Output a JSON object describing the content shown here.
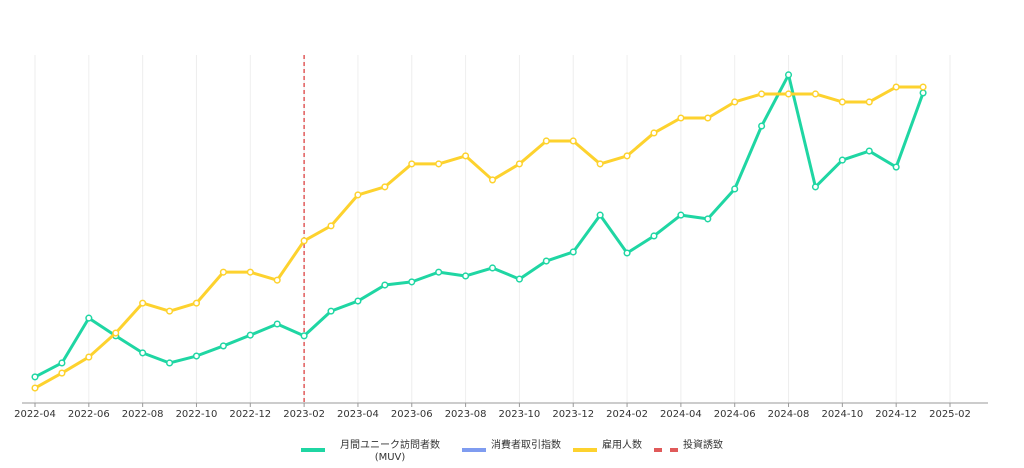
{
  "chart_data": {
    "type": "line",
    "x": [
      "2022-04",
      "2022-05",
      "2022-06",
      "2022-07",
      "2022-08",
      "2022-09",
      "2022-10",
      "2022-11",
      "2022-12",
      "2023-01",
      "2023-02",
      "2023-03",
      "2023-04",
      "2023-05",
      "2023-06",
      "2023-07",
      "2023-08",
      "2023-09",
      "2023-10",
      "2023-11",
      "2023-12",
      "2024-01",
      "2024-02",
      "2024-03",
      "2024-04",
      "2024-05",
      "2024-06",
      "2024-07",
      "2024-08",
      "2024-09",
      "2024-10",
      "2024-11",
      "2024-12",
      "2025-01"
    ],
    "series": [
      {
        "name": "月間ユニーク訪問者数 (MUV)",
        "color": "#1fd6a3",
        "values": [
          7.5,
          11.5,
          24.4,
          19.3,
          14.4,
          11.5,
          13.5,
          16.4,
          19.5,
          22.7,
          19.3,
          26.4,
          29.3,
          33.9,
          34.8,
          37.6,
          36.5,
          38.8,
          35.6,
          40.8,
          43.4,
          54.0,
          43.1,
          48.0,
          54.0,
          52.9,
          61.5,
          79.6,
          94.3,
          62.1,
          69.8,
          72.4,
          67.8,
          89.1
        ]
      },
      {
        "name": "消費者取引指数",
        "color": "#7f9cf0",
        "values": [
          null,
          null,
          null,
          null,
          null,
          null,
          null,
          null,
          null,
          null,
          null,
          null,
          null,
          null,
          null,
          null,
          null,
          null,
          null,
          null,
          null,
          null,
          null,
          null,
          null,
          null,
          null,
          null,
          null,
          null,
          null,
          null,
          null,
          null
        ]
      },
      {
        "name": "雇用人数",
        "color": "#fdd22e",
        "values": [
          4.3,
          8.6,
          13.2,
          20.1,
          28.7,
          26.4,
          28.7,
          37.6,
          37.6,
          35.3,
          46.6,
          50.9,
          59.8,
          62.1,
          68.7,
          68.7,
          71.0,
          64.1,
          68.7,
          75.3,
          75.3,
          68.7,
          71.0,
          77.6,
          81.9,
          81.9,
          86.5,
          88.8,
          88.8,
          88.8,
          86.5,
          86.5,
          90.8,
          90.8
        ]
      }
    ],
    "annotation": {
      "name": "投資誘致",
      "x": "2023-02",
      "color": "#e05a5a"
    },
    "xlim": [
      "2022-04",
      "2025-02"
    ],
    "xticks": [
      "2022-04",
      "2022-06",
      "2022-08",
      "2022-10",
      "2022-12",
      "2023-02",
      "2023-04",
      "2023-06",
      "2023-08",
      "2023-10",
      "2023-12",
      "2024-02",
      "2024-04",
      "2024-06",
      "2024-08",
      "2024-10",
      "2024-12",
      "2025-02"
    ],
    "ylim": [
      0,
      100
    ],
    "grid": true
  }
}
